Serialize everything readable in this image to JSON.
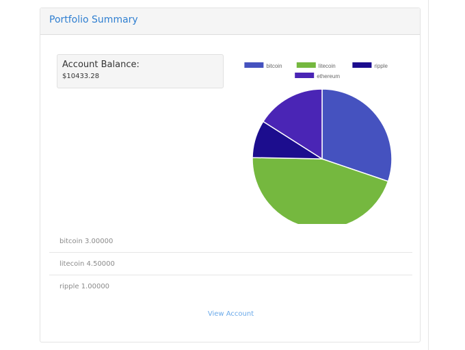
{
  "panel": {
    "title": "Portfolio Summary"
  },
  "balance": {
    "label": "Account Balance:",
    "value": "$10433.28"
  },
  "chart_data": {
    "type": "pie",
    "legend_position": "top",
    "categories": [
      "bitcoin",
      "litecoin",
      "ripple",
      "ethereum"
    ],
    "values": [
      30.2,
      45.1,
      8.7,
      16.0
    ],
    "colors": [
      "#4552bf",
      "#75b83f",
      "#1c0d8e",
      "#4a25b5"
    ]
  },
  "holdings": [
    {
      "text": "bitcoin 3.00000"
    },
    {
      "text": "litecoin 4.50000"
    },
    {
      "text": "ripple 1.00000"
    }
  ],
  "footer": {
    "view_account": "View Account"
  }
}
